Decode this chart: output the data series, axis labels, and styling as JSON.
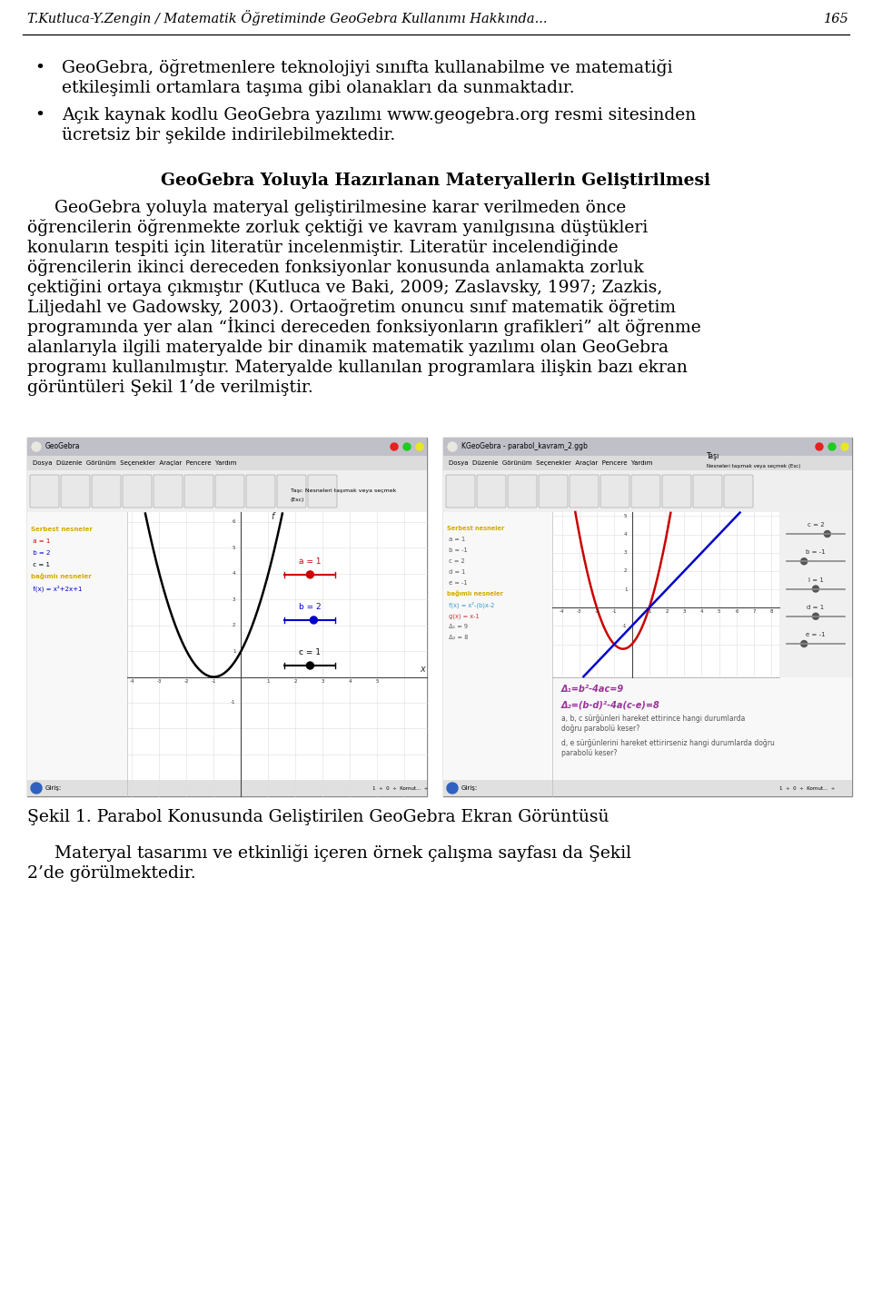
{
  "header_text": "T.Kutluca-Y.Zengin / Matematik Öğretiminde GeoGebra Kullanımı Hakkında...",
  "header_number": "165",
  "bg_color": "#ffffff",
  "text_color": "#000000",
  "bullet1_line1": "GeoGebra, öğretmenlere teknolojiyi sınıfta kullanabilme ve matematiği",
  "bullet1_line2": "etkileşimli ortamlara taşıma gibi olanakları da sunmaktadır.",
  "bullet2_line1": "Açık kaynak kodlu GeoGebra yazılımı www.geogebra.org resmi sitesinden",
  "bullet2_line2": "ücretsiz bir şekilde indirilebilmektedir.",
  "section_title": "GeoGebra Yoluyla Hazırlanan Materyallerin Geliştirilmesi",
  "para1_lines": [
    "     GeoGebra yoluyla materyal geliştirilmesine karar verilmeden önce",
    "öğrencilerin öğrenmekte zorluk çektiği ve kavram yanılgısına düştükleri",
    "konuların tespiti için literatür incelenmiştir. Literatür incelendiğinde",
    "öğrencilerin ikinci dereceden fonksiyonlar konusunda anlamakta zorluk",
    "çektiğini ortaya çıkmıştır (Kutluca ve Baki, 2009; Zaslavsky, 1997; Zazkis,",
    "Liljedahl ve Gadowsky, 2003). Ortaoğretim onuncu sınıf matematik öğretim",
    "programında yer alan “İkinci dereceden fonksiyonların grafikleri” alt öğrenme",
    "alanlarıyla ilgili materyalde bir dinamik matematik yazılımı olan GeoGebra",
    "programı kullanılmıştır. Materyalde kullanılan programlara ilişkin bazı ekran",
    "görüntüleri Şekil 1’de verilmiştir."
  ],
  "caption": "Şekil 1. Parabol Konusunda Geliştirilen GeoGebra Ekran Görüntüsü",
  "footer_lines": [
    "     Materyal tasarımı ve etkinliği içeren örnek çalışma sayfası da Şekil",
    "2’de görülmektedir."
  ],
  "left_menu": "Dosya  Düzenle  Görünüm  Seçenekler  Araçlar  Pencere  Yardım",
  "right_menu": "Dosya  Düzenle  Görünüm  Seçenekler  Araçlar  Pencere  Yardım",
  "left_title": "GeoGebra",
  "right_title": "KGeoGebra - parabol_kavram_2.ggb",
  "left_panel_items": [
    "Serbest nesneler",
    "a = 1",
    "b = 2",
    "c = 1",
    "bağmlı nesneler",
    "f(x) = x²+2x+1"
  ],
  "right_panel_items": [
    "Serbest nesneler",
    "a = 1",
    "b = -1",
    "c = 2",
    "d = 1",
    "e = -1",
    "bağmlı nesneler",
    "f(x) = x²-(b)x-2",
    "g(x) = x-1",
    "Δ₁ = 9",
    "Δ₂ = 8"
  ],
  "formula1": "Δ₁=b²-4ac=9",
  "formula2": "Δ₂=(b-d)²-4a(c-e)=8",
  "question1": "a, b, c sürğünleri hareket ettirince hangi durumlarda",
  "question2": "doğru parabolü keser?",
  "question3": "d, e sürğünlerini hareket ettirirseniz hangi durumlarda doğru",
  "question4": "parabolü keser?"
}
